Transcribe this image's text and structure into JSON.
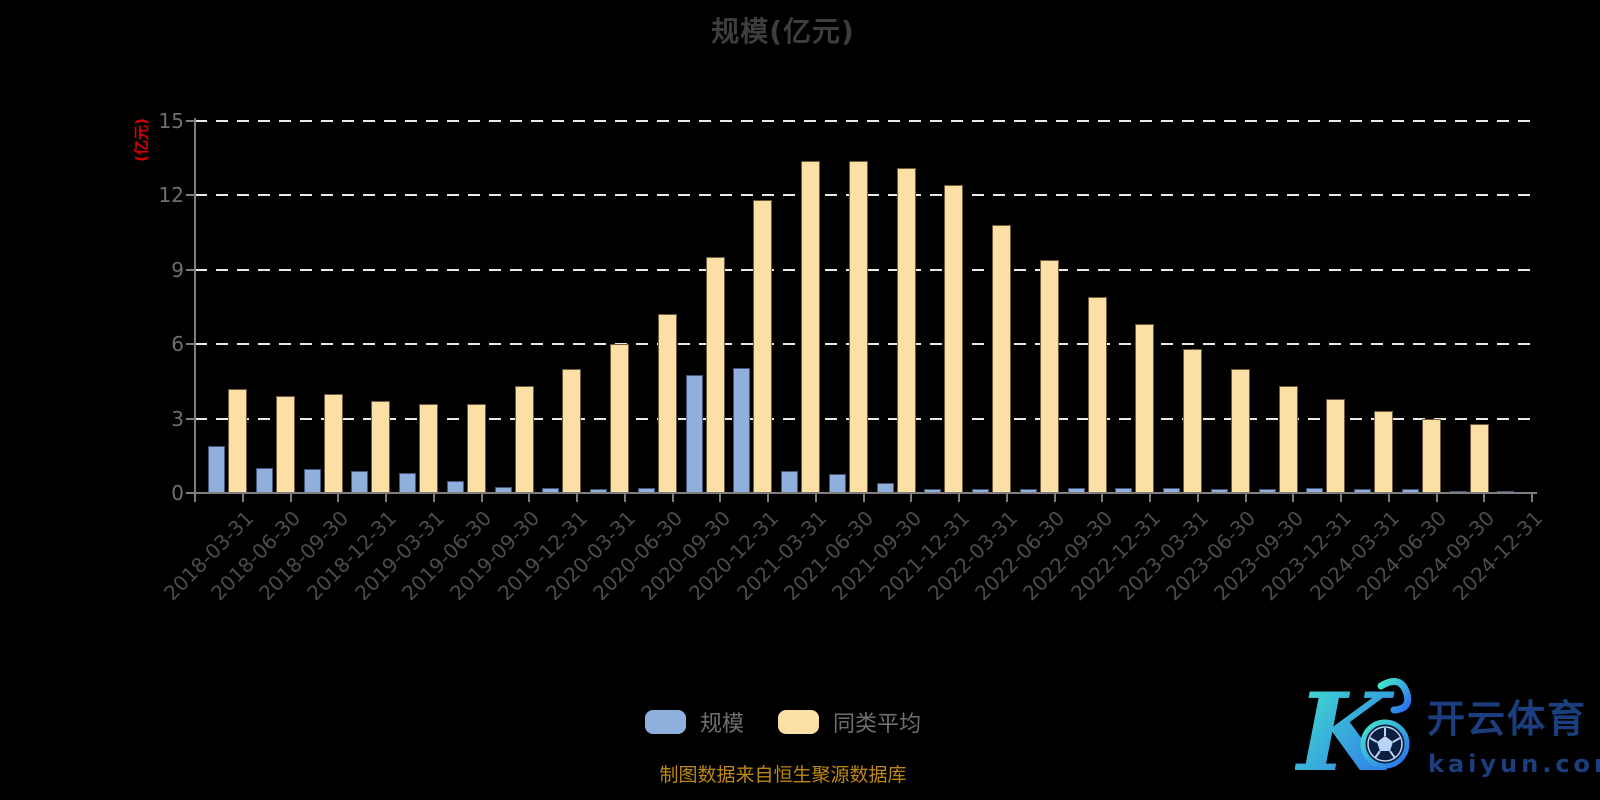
{
  "title": "规模(亿元)",
  "y_axis": {
    "name": "(亿元)",
    "tick_values": [
      0,
      3,
      6,
      9,
      12,
      15
    ]
  },
  "footer_note": "制图数据来自恒生聚源数据库",
  "watermark": {
    "brand": "开云体育",
    "domain": "kaiyun.com"
  },
  "colors": {
    "background": "#000000",
    "title": "#3d3d3d",
    "y_axis_name": "#d60000",
    "axis": "#7e7e7e",
    "gridline": "#e9e9e9",
    "y_label": "#6f6f6f",
    "x_label": "#4c4c4c",
    "legend_label": "#6f6f6f",
    "footer": "#bc8712",
    "watermark_text": "#1b3f7e"
  },
  "chart_data": {
    "type": "bar",
    "title": "规模(亿元)",
    "ylabel": "(亿元)",
    "ylim": [
      0,
      15
    ],
    "y_ticks": [
      0,
      3,
      6,
      9,
      12,
      15
    ],
    "grid": "horizontal-dashed",
    "legend_position": "bottom-center",
    "categories": [
      "2018-03-31",
      "2018-06-30",
      "2018-09-30",
      "2018-12-31",
      "2019-03-31",
      "2019-06-30",
      "2019-09-30",
      "2019-12-31",
      "2020-03-31",
      "2020-06-30",
      "2020-09-30",
      "2020-12-31",
      "2021-03-31",
      "2021-06-30",
      "2021-09-30",
      "2021-12-31",
      "2022-03-31",
      "2022-06-30",
      "2022-09-30",
      "2022-12-31",
      "2023-03-31",
      "2023-06-30",
      "2023-09-30",
      "2023-12-31",
      "2024-03-31",
      "2024-06-30",
      "2024-09-30",
      "2024-12-31"
    ],
    "series": [
      {
        "name": "规模",
        "key": "scale",
        "color": "#8fb0dc",
        "border": "#45567a",
        "values": [
          1.9,
          1.0,
          0.95,
          0.9,
          0.8,
          0.5,
          0.25,
          0.2,
          0.15,
          0.2,
          4.75,
          5.05,
          0.9,
          0.75,
          0.4,
          0.15,
          0.15,
          0.15,
          0.2,
          0.2,
          0.2,
          0.15,
          0.15,
          0.2,
          0.15,
          0.15,
          0.1,
          0.1
        ]
      },
      {
        "name": "同类平均",
        "key": "peer-average",
        "color": "#fcdfa4",
        "border": "#6b5c3c",
        "values": [
          4.2,
          3.9,
          4.0,
          3.7,
          3.6,
          3.6,
          4.3,
          5.0,
          6.0,
          7.2,
          9.5,
          11.8,
          13.4,
          13.4,
          13.1,
          12.4,
          10.8,
          9.4,
          7.9,
          6.8,
          5.8,
          5.0,
          4.3,
          3.8,
          3.3,
          3.0,
          2.8,
          0
        ]
      }
    ]
  }
}
